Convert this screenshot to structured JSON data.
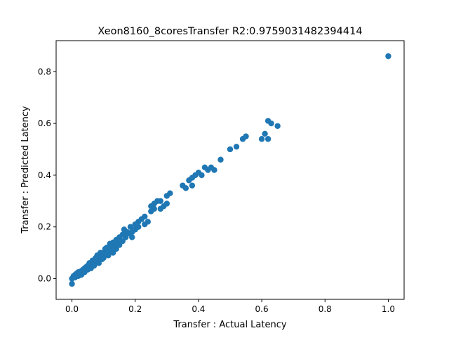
{
  "chart_data": {
    "type": "scatter",
    "title": "Xeon8160_8coresTransfer R2:0.9759031482394414",
    "xlabel": "Transfer : Actual Latency",
    "ylabel": "Transfer : Predicted Latency",
    "xlim": [
      -0.05,
      1.05
    ],
    "ylim": [
      -0.08,
      0.92
    ],
    "xticks": [
      0.0,
      0.2,
      0.4,
      0.6,
      0.8,
      1.0
    ],
    "xtick_labels": [
      "0.0",
      "0.2",
      "0.4",
      "0.6",
      "0.8",
      "1.0"
    ],
    "yticks": [
      0.0,
      0.2,
      0.4,
      0.6,
      0.8
    ],
    "ytick_labels": [
      "0.0",
      "0.2",
      "0.4",
      "0.6",
      "0.8"
    ],
    "grid": false,
    "legend": "none",
    "marker_color": "#1f77b4",
    "series": [
      {
        "points": [
          [
            0.0,
            -0.02
          ],
          [
            0.0,
            0.0
          ],
          [
            0.005,
            0.01
          ],
          [
            0.01,
            0.005
          ],
          [
            0.01,
            0.015
          ],
          [
            0.015,
            0.02
          ],
          [
            0.02,
            0.01
          ],
          [
            0.02,
            0.025
          ],
          [
            0.025,
            0.02
          ],
          [
            0.03,
            0.03
          ],
          [
            0.03,
            0.015
          ],
          [
            0.035,
            0.035
          ],
          [
            0.04,
            0.04
          ],
          [
            0.04,
            0.025
          ],
          [
            0.045,
            0.045
          ],
          [
            0.05,
            0.05
          ],
          [
            0.05,
            0.035
          ],
          [
            0.055,
            0.06
          ],
          [
            0.06,
            0.055
          ],
          [
            0.06,
            0.04
          ],
          [
            0.065,
            0.07
          ],
          [
            0.07,
            0.065
          ],
          [
            0.07,
            0.05
          ],
          [
            0.075,
            0.08
          ],
          [
            0.08,
            0.07
          ],
          [
            0.08,
            0.09
          ],
          [
            0.085,
            0.06
          ],
          [
            0.09,
            0.085
          ],
          [
            0.09,
            0.1
          ],
          [
            0.095,
            0.075
          ],
          [
            0.1,
            0.1
          ],
          [
            0.1,
            0.08
          ],
          [
            0.105,
            0.115
          ],
          [
            0.11,
            0.095
          ],
          [
            0.11,
            0.12
          ],
          [
            0.115,
            0.09
          ],
          [
            0.12,
            0.11
          ],
          [
            0.12,
            0.135
          ],
          [
            0.125,
            0.12
          ],
          [
            0.13,
            0.1
          ],
          [
            0.13,
            0.14
          ],
          [
            0.135,
            0.13
          ],
          [
            0.14,
            0.15
          ],
          [
            0.14,
            0.115
          ],
          [
            0.145,
            0.14
          ],
          [
            0.15,
            0.16
          ],
          [
            0.15,
            0.13
          ],
          [
            0.16,
            0.17
          ],
          [
            0.16,
            0.145
          ],
          [
            0.165,
            0.19
          ],
          [
            0.17,
            0.16
          ],
          [
            0.175,
            0.18
          ],
          [
            0.18,
            0.175
          ],
          [
            0.185,
            0.2
          ],
          [
            0.19,
            0.18
          ],
          [
            0.19,
            0.16
          ],
          [
            0.2,
            0.21
          ],
          [
            0.2,
            0.19
          ],
          [
            0.21,
            0.22
          ],
          [
            0.21,
            0.2
          ],
          [
            0.22,
            0.23
          ],
          [
            0.23,
            0.21
          ],
          [
            0.23,
            0.24
          ],
          [
            0.24,
            0.22
          ],
          [
            0.25,
            0.26
          ],
          [
            0.25,
            0.28
          ],
          [
            0.26,
            0.27
          ],
          [
            0.26,
            0.29
          ],
          [
            0.27,
            0.3
          ],
          [
            0.28,
            0.27
          ],
          [
            0.28,
            0.3
          ],
          [
            0.29,
            0.28
          ],
          [
            0.3,
            0.32
          ],
          [
            0.3,
            0.29
          ],
          [
            0.31,
            0.33
          ],
          [
            0.35,
            0.36
          ],
          [
            0.36,
            0.35
          ],
          [
            0.37,
            0.38
          ],
          [
            0.38,
            0.39
          ],
          [
            0.38,
            0.36
          ],
          [
            0.39,
            0.4
          ],
          [
            0.4,
            0.41
          ],
          [
            0.41,
            0.4
          ],
          [
            0.42,
            0.43
          ],
          [
            0.43,
            0.42
          ],
          [
            0.44,
            0.43
          ],
          [
            0.45,
            0.42
          ],
          [
            0.47,
            0.46
          ],
          [
            0.5,
            0.5
          ],
          [
            0.52,
            0.51
          ],
          [
            0.54,
            0.54
          ],
          [
            0.55,
            0.55
          ],
          [
            0.6,
            0.54
          ],
          [
            0.61,
            0.56
          ],
          [
            0.62,
            0.54
          ],
          [
            0.62,
            0.61
          ],
          [
            0.63,
            0.6
          ],
          [
            0.65,
            0.59
          ],
          [
            1.0,
            0.86
          ]
        ]
      }
    ]
  }
}
